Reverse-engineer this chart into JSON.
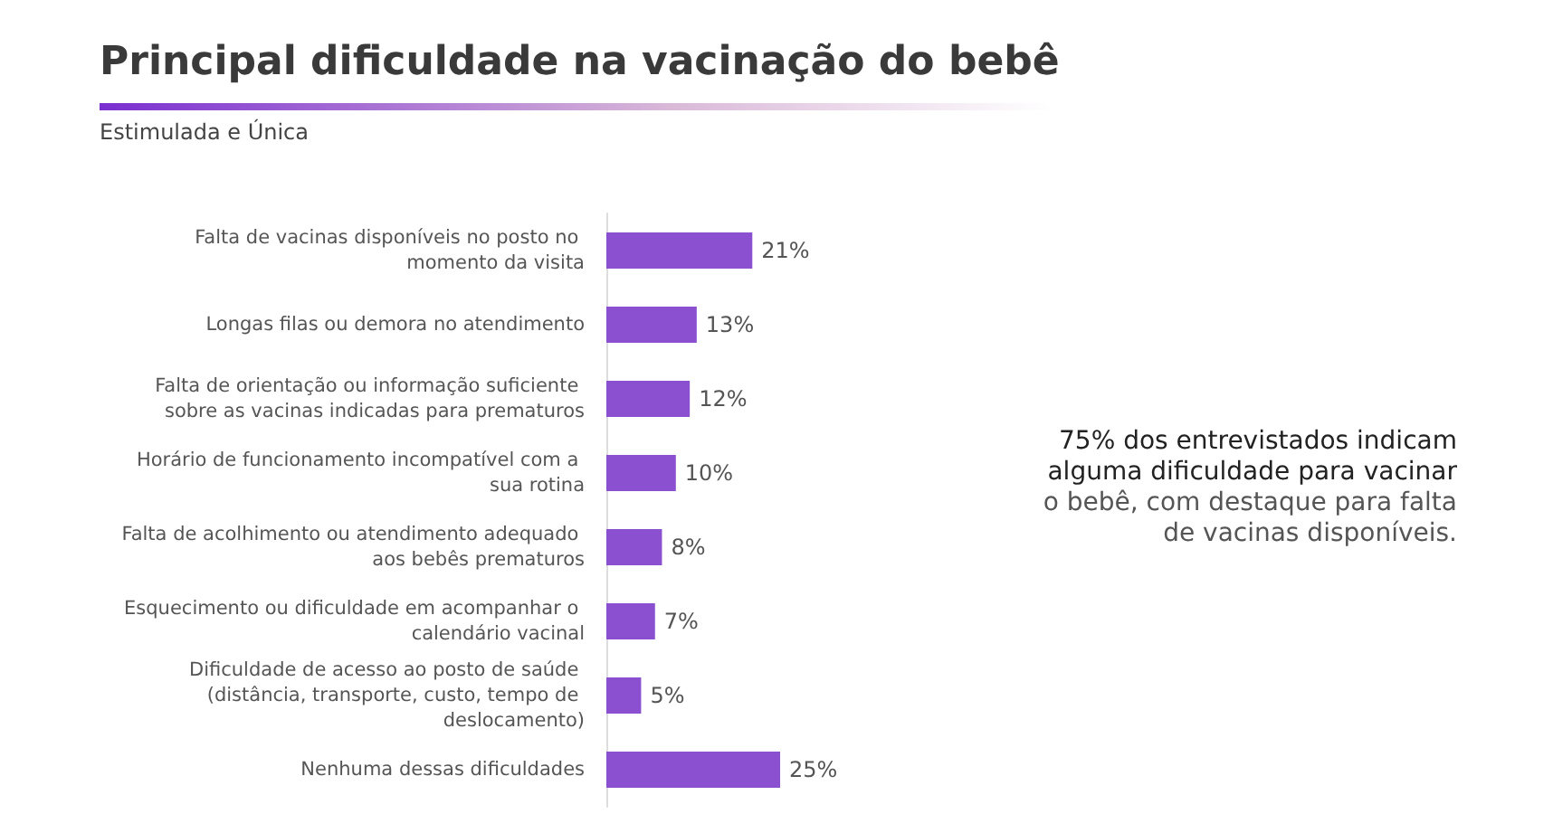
{
  "chart_data": {
    "type": "bar",
    "orientation": "horizontal",
    "title": "Principal dificuldade na vacinação do bebê",
    "subtitle": "Estimulada e Única",
    "categories": [
      "Falta de vacinas disponíveis no posto no momento da visita",
      "Longas filas ou demora no atendimento",
      "Falta de orientação ou informação suficiente sobre as vacinas indicadas para prematuros",
      "Horário de funcionamento incompatível com a sua rotina",
      "Falta de acolhimento ou atendimento adequado aos bebês prematuros",
      "Esquecimento ou dificuldade em acompanhar o calendário vacinal",
      "Dificuldade de acesso ao posto de saúde (distância, transporte, custo, tempo de deslocamento)",
      "Nenhuma dessas dificuldades"
    ],
    "values": [
      21,
      13,
      12,
      10,
      8,
      7,
      5,
      25
    ],
    "value_labels": [
      "21%",
      "13%",
      "12%",
      "10%",
      "8%",
      "7%",
      "5%",
      "25%"
    ],
    "color": "#8a50d0",
    "annotations": [
      "75% dos entrevistados indicam alguma dificuldade para vacinar",
      "o bebê, com destaque para falta de vacinas disponíveis."
    ]
  }
}
